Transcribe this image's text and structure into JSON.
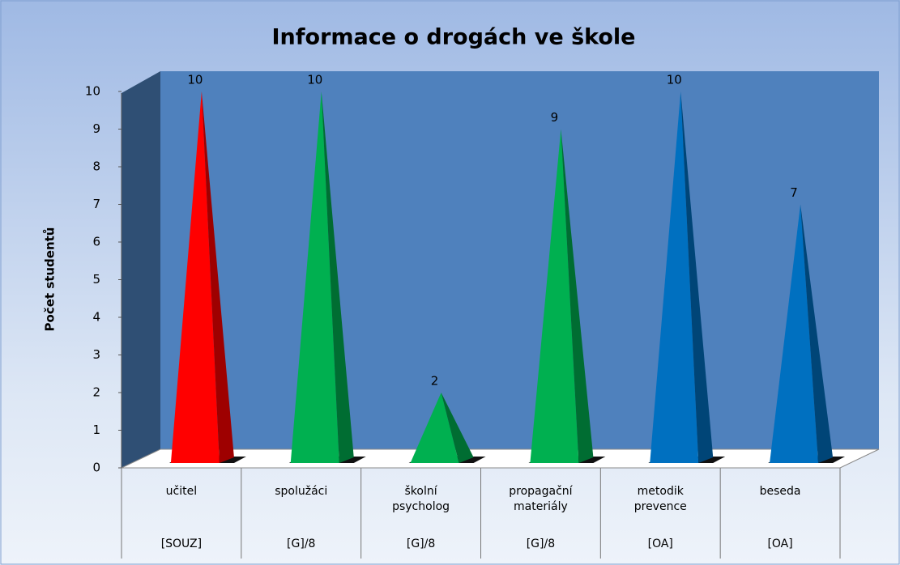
{
  "chart_data": {
    "type": "pyramid",
    "title": "Informace o drogách ve škole",
    "y_label": "Počet studentů",
    "categories": [
      "učitel",
      "spolužáci",
      "školní psycholog",
      "propagační materiály",
      "metodik prevence",
      "beseda"
    ],
    "groups": [
      "[SOUZ]",
      "[G]/8",
      "[G]/8",
      "[G]/8",
      "[OA]",
      "[OA]"
    ],
    "values": [
      10,
      10,
      2,
      9,
      10,
      7
    ],
    "colors": [
      "#ff0000",
      "#00b050",
      "#00b050",
      "#00b050",
      "#0070c0",
      "#0070c0"
    ],
    "ylim": [
      0,
      10
    ],
    "yticks": [
      0,
      1,
      2,
      3,
      4,
      5,
      6,
      7,
      8,
      9,
      10
    ]
  }
}
